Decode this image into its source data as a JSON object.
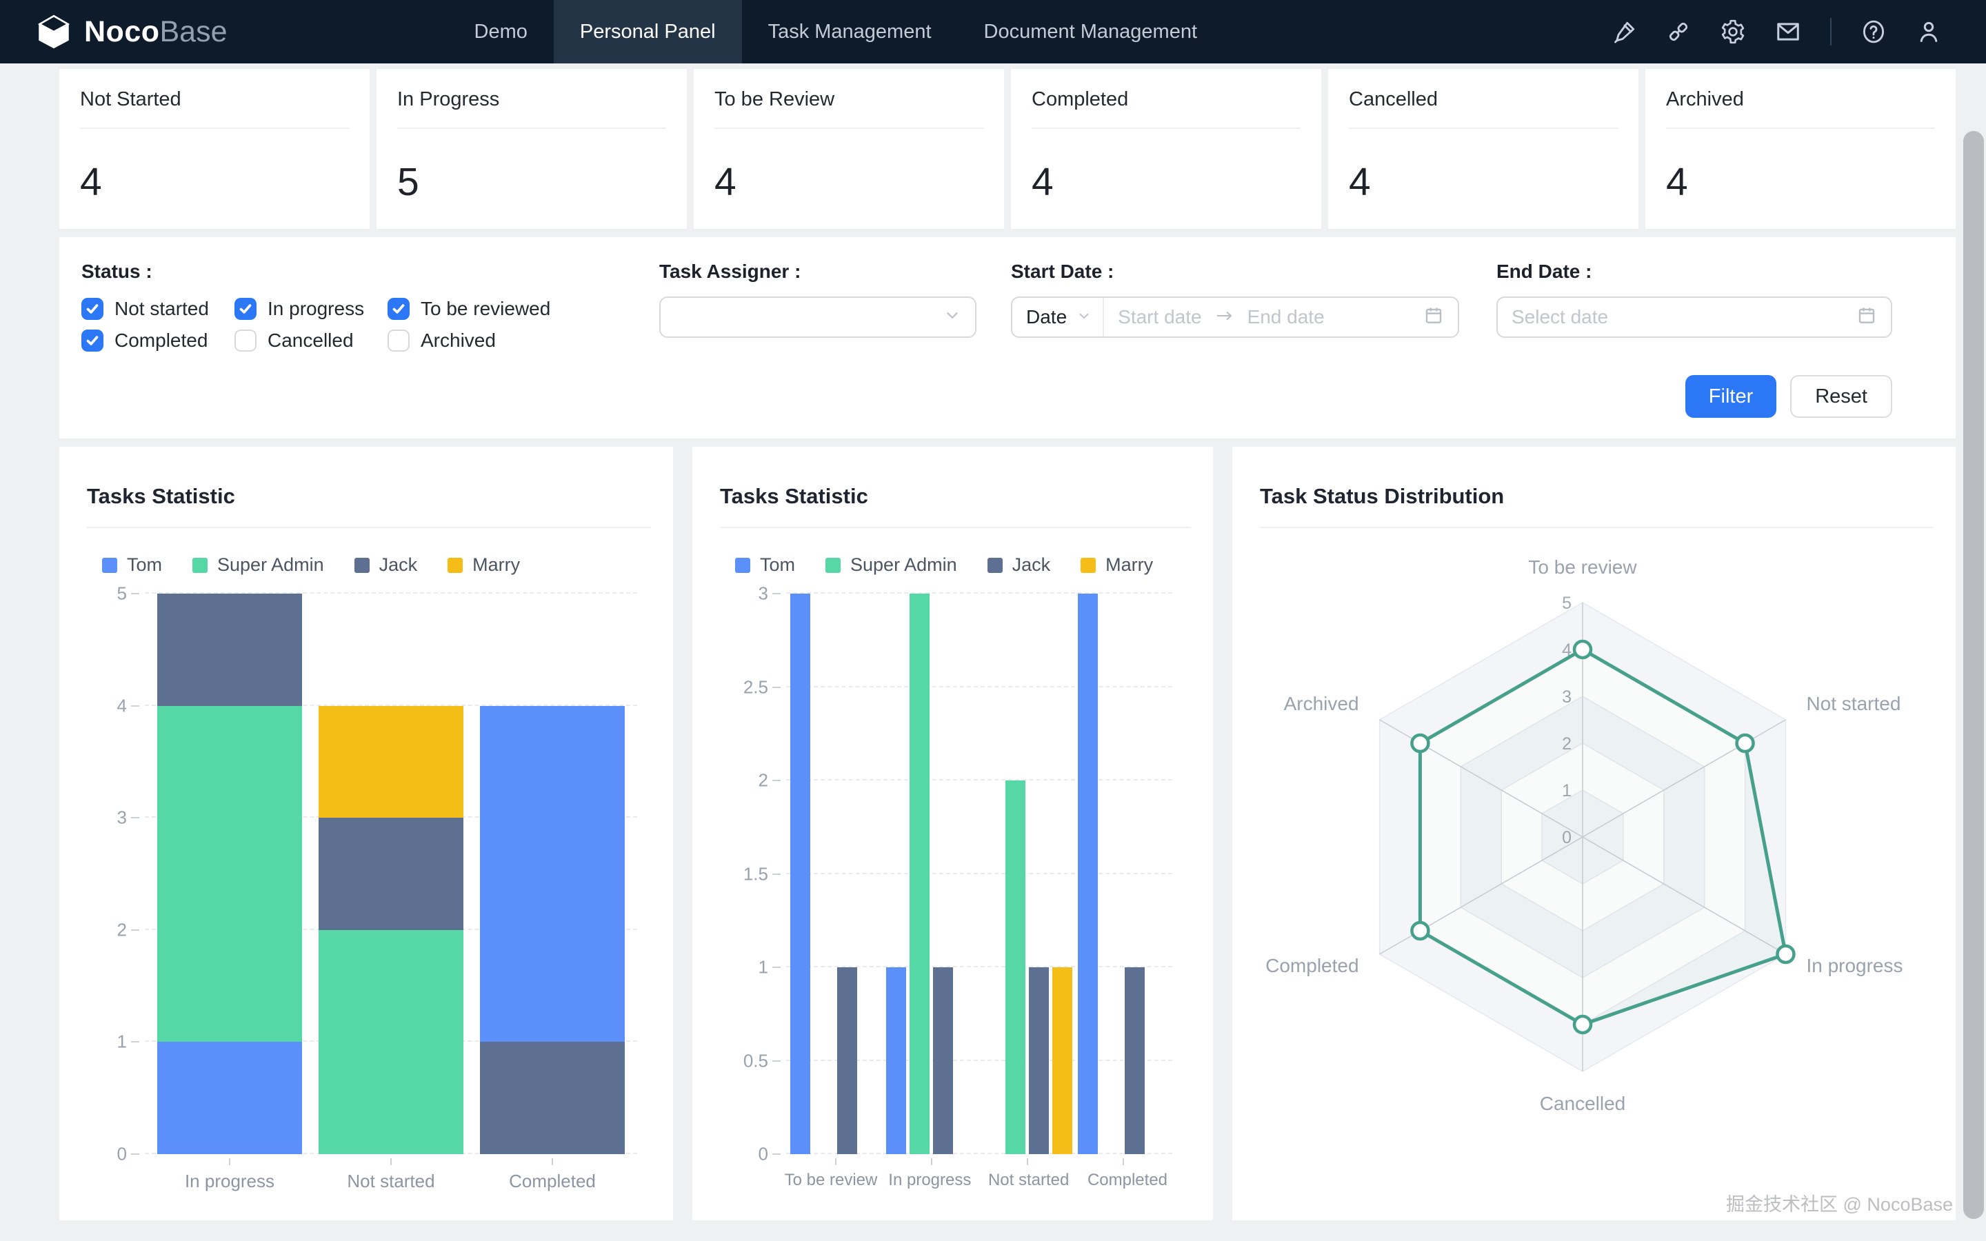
{
  "colors": {
    "accent": "#2B77F5",
    "navbar_bg": "#0D1B2A",
    "navbar_active_bg": "#243447",
    "radar_stroke": "#46A08C",
    "radar_band": "#F3F5F9"
  },
  "palette": {
    "Tom": "#5B8FF9",
    "Super Admin": "#55D8A5",
    "Jack": "#5D7092",
    "Marry": "#F5BD17"
  },
  "navbar": {
    "logo_primary": "Noco",
    "logo_secondary": "Base",
    "items": [
      {
        "label": "Demo",
        "active": false
      },
      {
        "label": "Personal Panel",
        "active": true
      },
      {
        "label": "Task Management",
        "active": false
      },
      {
        "label": "Document Management",
        "active": false
      }
    ],
    "right_icons": [
      "highlighter",
      "plugin",
      "gear",
      "mail",
      "help",
      "user"
    ]
  },
  "stats": [
    {
      "label": "Not Started",
      "value": "4"
    },
    {
      "label": "In Progress",
      "value": "5"
    },
    {
      "label": "To be Review",
      "value": "4"
    },
    {
      "label": "Completed",
      "value": "4"
    },
    {
      "label": "Cancelled",
      "value": "4"
    },
    {
      "label": "Archived",
      "value": "4"
    }
  ],
  "filter": {
    "status_label": "Status :",
    "checkboxes": [
      {
        "label": "Not started",
        "checked": true
      },
      {
        "label": "In progress",
        "checked": true
      },
      {
        "label": "To be reviewed",
        "checked": true
      },
      {
        "label": "Completed",
        "checked": true
      },
      {
        "label": "Cancelled",
        "checked": false
      },
      {
        "label": "Archived",
        "checked": false
      }
    ],
    "assigner_label": "Task Assigner :",
    "start_date_label": "Start Date :",
    "date_mode": "Date",
    "start_placeholder": "Start date",
    "end_placeholder": "End date",
    "end_date_label": "End Date :",
    "select_date_placeholder": "Select date",
    "filter_button": "Filter",
    "reset_button": "Reset"
  },
  "chart_data": [
    {
      "type": "bar",
      "variant": "stacked",
      "title": "Tasks Statistic",
      "legend": [
        "Tom",
        "Super Admin",
        "Jack",
        "Marry"
      ],
      "ylim": [
        0,
        5
      ],
      "yticks": [
        0,
        1,
        2,
        3,
        4,
        5
      ],
      "bars": [
        {
          "category": "In progress",
          "segments": [
            {
              "name": "Tom",
              "value": 1
            },
            {
              "name": "Super Admin",
              "value": 3
            },
            {
              "name": "Jack",
              "value": 1
            }
          ]
        },
        {
          "category": "Not started",
          "segments": [
            {
              "name": "Super Admin",
              "value": 2
            },
            {
              "name": "Jack",
              "value": 1
            },
            {
              "name": "Marry",
              "value": 1
            }
          ]
        },
        {
          "category": "Completed",
          "segments": [
            {
              "name": "Jack",
              "value": 1
            },
            {
              "name": "Tom",
              "value": 3
            }
          ]
        }
      ]
    },
    {
      "type": "bar",
      "variant": "grouped",
      "title": "Tasks Statistic",
      "legend": [
        "Tom",
        "Super Admin",
        "Jack",
        "Marry"
      ],
      "ylim": [
        0,
        3
      ],
      "yticks": [
        0,
        0.5,
        1,
        1.5,
        2,
        2.5,
        3
      ],
      "categories": [
        "To be review",
        "In progress",
        "Not started",
        "Completed"
      ],
      "series": [
        {
          "name": "Tom",
          "values": [
            3,
            1,
            null,
            3
          ]
        },
        {
          "name": "Super Admin",
          "values": [
            null,
            3,
            2,
            null
          ]
        },
        {
          "name": "Jack",
          "values": [
            1,
            1,
            1,
            1
          ]
        },
        {
          "name": "Marry",
          "values": [
            null,
            null,
            1,
            null
          ]
        }
      ]
    },
    {
      "type": "radar",
      "title": "Task Status Distribution",
      "axes": [
        "To be review",
        "Not started",
        "In progress",
        "Cancelled",
        "Completed",
        "Archived"
      ],
      "values": [
        4,
        4,
        5,
        4,
        4,
        4
      ],
      "rlim": [
        0,
        5
      ],
      "rticks": [
        0,
        1,
        2,
        3,
        4,
        5
      ]
    }
  ],
  "watermark": "掘金技术社区 @ NocoBase"
}
